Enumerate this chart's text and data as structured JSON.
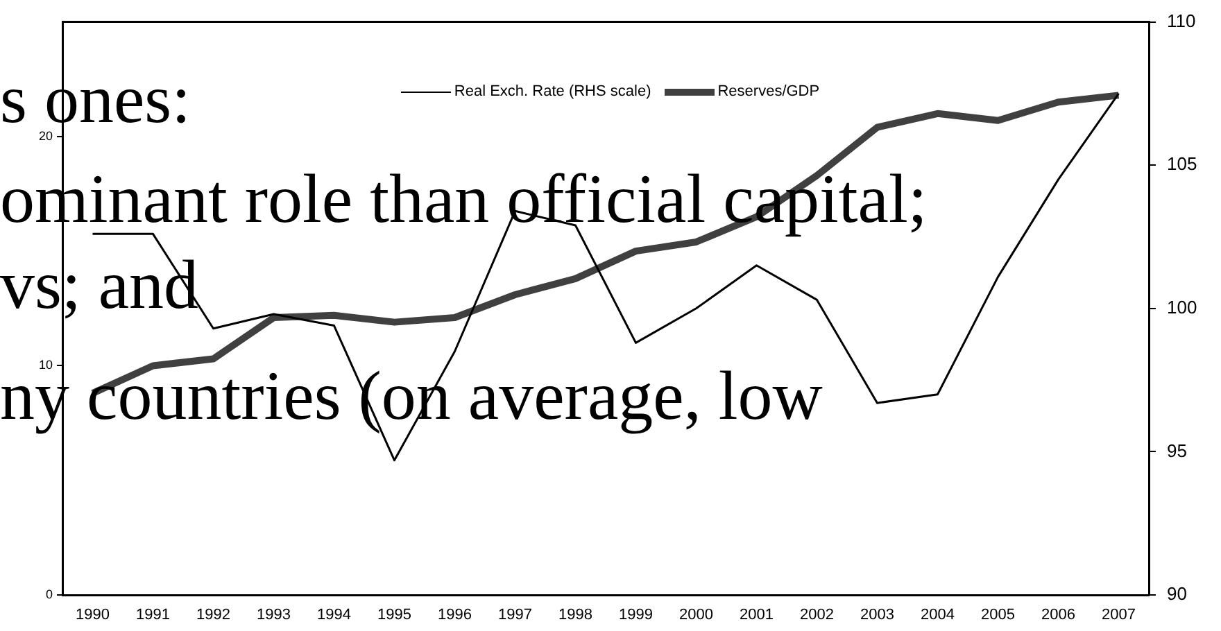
{
  "chart_data": {
    "type": "line",
    "categories": [
      "1990",
      "1991",
      "1992",
      "1993",
      "1994",
      "1995",
      "1996",
      "1997",
      "1998",
      "1999",
      "2000",
      "2001",
      "2002",
      "2003",
      "2004",
      "2005",
      "2006",
      "2007"
    ],
    "series": [
      {
        "name": "Real Exch. Rate (RHS scale)",
        "color": "#000000",
        "axis": "y2",
        "values": [
          102.6,
          102.6,
          99.3,
          99.8,
          99.4,
          94.7,
          98.5,
          103.4,
          102.9,
          98.8,
          100.0,
          101.5,
          100.3,
          96.7,
          97.0,
          101.1,
          104.5,
          107.5
        ]
      },
      {
        "name": "Reserves/GDP",
        "color": "#404040",
        "values": [
          8.8,
          10.0,
          10.3,
          12.1,
          12.2,
          11.9,
          12.1,
          13.1,
          13.8,
          15.0,
          15.4,
          16.5,
          18.3,
          20.4,
          21.0,
          20.7,
          21.5,
          21.8
        ]
      }
    ],
    "ylim": [
      0,
      25
    ],
    "yticks": [
      0,
      10,
      20
    ],
    "y2lim": [
      90,
      110
    ],
    "y2ticks": [
      90,
      95,
      100,
      105,
      110
    ],
    "legend": "top",
    "grid": false,
    "marker": "none",
    "line_style": "solid",
    "annotations": [
      "s ones:",
      "ominant role than official capital;",
      "vs; and",
      "ny countries (on average, low"
    ]
  }
}
